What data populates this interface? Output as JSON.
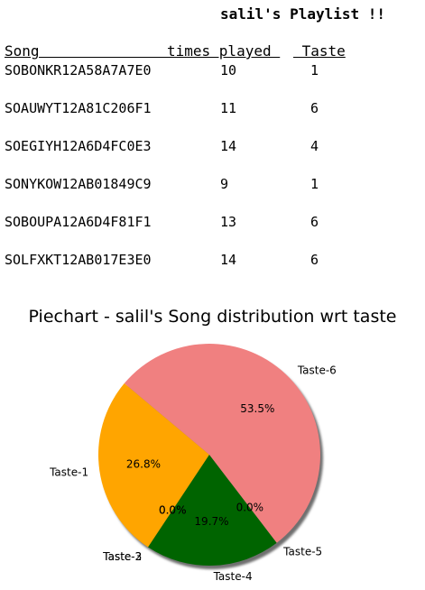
{
  "page": {
    "title": "salil's Playlist !!"
  },
  "table": {
    "headers": {
      "song": "Song",
      "fill": "               ",
      "times_played": "times played ",
      "taste": " Taste"
    },
    "rows": [
      {
        "song": "SOBONKR12A58A7A7E0",
        "times_played": "10",
        "taste": "1"
      },
      {
        "song": "SOAUWYT12A81C206F1",
        "times_played": "11",
        "taste": "6"
      },
      {
        "song": "SOEGIYH12A6D4FC0E3",
        "times_played": "14",
        "taste": "4"
      },
      {
        "song": "SONYKOW12AB01849C9",
        "times_played": "9",
        "taste": "1"
      },
      {
        "song": "SOBOUPA12A6D4F81F1",
        "times_played": "13",
        "taste": "6"
      },
      {
        "song": "SOLFXKT12AB017E3E0",
        "times_played": "14",
        "taste": "6"
      }
    ]
  },
  "chart_data": {
    "type": "pie",
    "title": "Piechart - salil's Song distribution wrt taste",
    "start_angle_deg": 140,
    "direction": "counterclockwise",
    "shadow": true,
    "slices": [
      {
        "label": "Taste-1",
        "value": 26.8,
        "pct_label": "26.8%",
        "color": "#ffa500"
      },
      {
        "label": "Taste-2",
        "value": 0.0,
        "pct_label": "0.0%",
        "color": "#1f77b4"
      },
      {
        "label": "Taste-3",
        "value": 0.0,
        "pct_label": "0.0%",
        "color": "#d62728"
      },
      {
        "label": "Taste-4",
        "value": 19.7,
        "pct_label": "19.7%",
        "color": "#006400"
      },
      {
        "label": "Taste-5",
        "value": 0.0,
        "pct_label": "0.0%",
        "color": "#9467bd"
      },
      {
        "label": "Taste-6",
        "value": 53.5,
        "pct_label": "53.5%",
        "color": "#f08080"
      }
    ]
  }
}
